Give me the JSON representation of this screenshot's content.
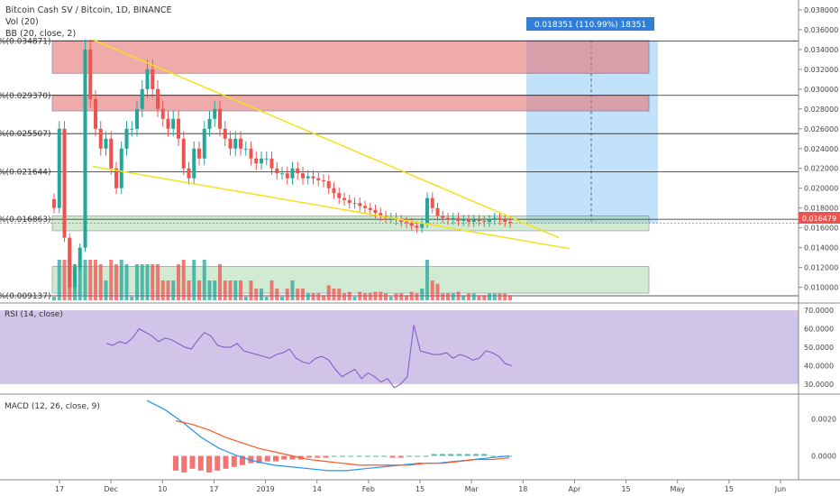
{
  "header": {
    "symbol": "Bitcoin Cash SV / Bitcoin, 1D, BINANCE",
    "volume": "Vol (20)",
    "bollinger": "BB (20, close, 2)"
  },
  "measure_label": "0.018351 (110.99%) 18351",
  "current_price": "0.016479",
  "colors": {
    "up": "#26a69a",
    "down": "#ef5350",
    "trendline": "#f5e11b",
    "resistance_zone": "#e57373",
    "support_zone": "#a5d6a7",
    "measure_zone": "#90caf9",
    "rsi_bg": "#b39ddb",
    "macd_line": "#2196f3",
    "signal_line": "#ff5722"
  },
  "chart_data": [
    {
      "type": "candlestick",
      "name": "main",
      "y_ticks": [
        "0.038000",
        "0.036000",
        "0.034000",
        "0.032000",
        "0.030000",
        "0.028000",
        "0.026000",
        "0.024000",
        "0.022000",
        "0.020000",
        "0.018000",
        "0.016000",
        "0.014000",
        "0.012000",
        "0.010000"
      ],
      "ylim": [
        0.0085,
        0.039
      ],
      "x_ticks": [
        "17",
        "Dec",
        "10",
        "17",
        "2019",
        "14",
        "Feb",
        "15",
        "Mar",
        "18",
        "Apr",
        "15",
        "May",
        "15",
        "Jun"
      ],
      "level_labels": [
        "%(0.034871)",
        "%(0.029370)",
        "%(0.025507)",
        "%(0.021644)",
        "%(0.016863)",
        "%(0.009137)"
      ],
      "levels": [
        0.034871,
        0.02937,
        0.025507,
        0.021644,
        0.016863,
        0.009137
      ],
      "zones": [
        {
          "kind": "resistance",
          "low": 0.0316,
          "high": 0.0349
        },
        {
          "kind": "resistance",
          "low": 0.0278,
          "high": 0.0294
        },
        {
          "kind": "support",
          "low": 0.0157,
          "high": 0.0172
        },
        {
          "kind": "support",
          "low": 0.0094,
          "high": 0.0121
        }
      ],
      "closes": [
        0.018,
        0.026,
        0.015,
        0.01,
        0.012,
        0.014,
        0.034,
        0.029,
        0.026,
        0.024,
        0.025,
        0.022,
        0.02,
        0.024,
        0.026,
        0.026,
        0.028,
        0.03,
        0.032,
        0.03,
        0.028,
        0.027,
        0.026,
        0.027,
        0.025,
        0.022,
        0.021,
        0.024,
        0.023,
        0.026,
        0.027,
        0.028,
        0.026,
        0.025,
        0.024,
        0.025,
        0.024,
        0.024,
        0.023,
        0.0225,
        0.023,
        0.023,
        0.022,
        0.0215,
        0.0215,
        0.021,
        0.022,
        0.0215,
        0.021,
        0.0212,
        0.021,
        0.0208,
        0.0207,
        0.02,
        0.0195,
        0.019,
        0.0188,
        0.0185,
        0.0185,
        0.0182,
        0.018,
        0.0178,
        0.0175,
        0.0172,
        0.017,
        0.017,
        0.0168,
        0.0166,
        0.0165,
        0.0162,
        0.016,
        0.0165,
        0.019,
        0.018,
        0.0172,
        0.017,
        0.0168,
        0.017,
        0.0167,
        0.0168,
        0.0166,
        0.0168,
        0.0167,
        0.0166,
        0.0168,
        0.017,
        0.0168,
        0.0166,
        0.0165
      ],
      "current": 0.016479
    },
    {
      "type": "line",
      "name": "RSI (14, close)",
      "y_ticks": [
        "70.0000",
        "60.0000",
        "50.0000",
        "40.0000",
        "30.0000"
      ],
      "ylim": [
        27,
        72
      ],
      "band": [
        30,
        70
      ],
      "values": [
        52,
        51,
        53,
        52,
        55,
        60,
        58,
        56,
        53,
        55,
        54,
        52,
        50,
        49,
        54,
        58,
        56,
        51,
        50,
        50,
        52,
        48,
        47,
        46,
        45,
        44,
        46,
        47,
        49,
        44,
        42,
        41,
        44,
        45,
        43,
        38,
        34,
        36,
        38,
        33,
        36,
        34,
        31,
        33,
        28,
        30,
        34,
        62,
        48,
        47,
        46,
        46,
        47,
        44,
        46,
        45,
        43,
        44,
        48,
        47,
        45,
        41,
        40
      ]
    },
    {
      "type": "bar",
      "name": "MACD (12, 26, close, 9)",
      "y_ticks": [
        "0.0020",
        "0.0000"
      ],
      "ylim": [
        -0.0011,
        0.0032
      ],
      "macd": [
        0.003,
        0.0025,
        0.0018,
        0.001,
        0.0004,
        0.0,
        -0.0003,
        -0.0005,
        -0.0006,
        -0.0007,
        -0.0008,
        -0.0008,
        -0.0007,
        -0.0006,
        -0.0005,
        -0.0004,
        -0.0004,
        -0.0003,
        -0.0002,
        -0.0001,
        0.0
      ],
      "signal": [
        0.0019,
        0.0017,
        0.0014,
        0.001,
        0.0007,
        0.0004,
        0.0002,
        0.0,
        -0.0002,
        -0.0003,
        -0.0004,
        -0.0005,
        -0.0005,
        -0.0005,
        -0.0005,
        -0.0004,
        -0.0004,
        -0.0003,
        -0.0002,
        -0.0002,
        -0.0001
      ],
      "histogram": [
        -0.0008,
        -0.0009,
        -0.0007,
        -0.0008,
        -0.0009,
        -0.0008,
        -0.0007,
        -0.0006,
        -0.0005,
        -0.0004,
        -0.0004,
        -0.0003,
        -0.0003,
        -0.0002,
        -0.0002,
        -0.0002,
        -0.0001,
        -0.0001,
        -0.0001,
        0.0,
        0.0,
        0.0,
        0.0,
        0.0,
        0.0,
        0.0,
        -0.0001,
        -0.0001,
        0.0,
        0.0,
        0.0,
        0.0001,
        0.0001,
        0.0001,
        0.0001,
        0.0001,
        0.0001,
        0.0001,
        0.0,
        0.0,
        0.0
      ]
    }
  ]
}
